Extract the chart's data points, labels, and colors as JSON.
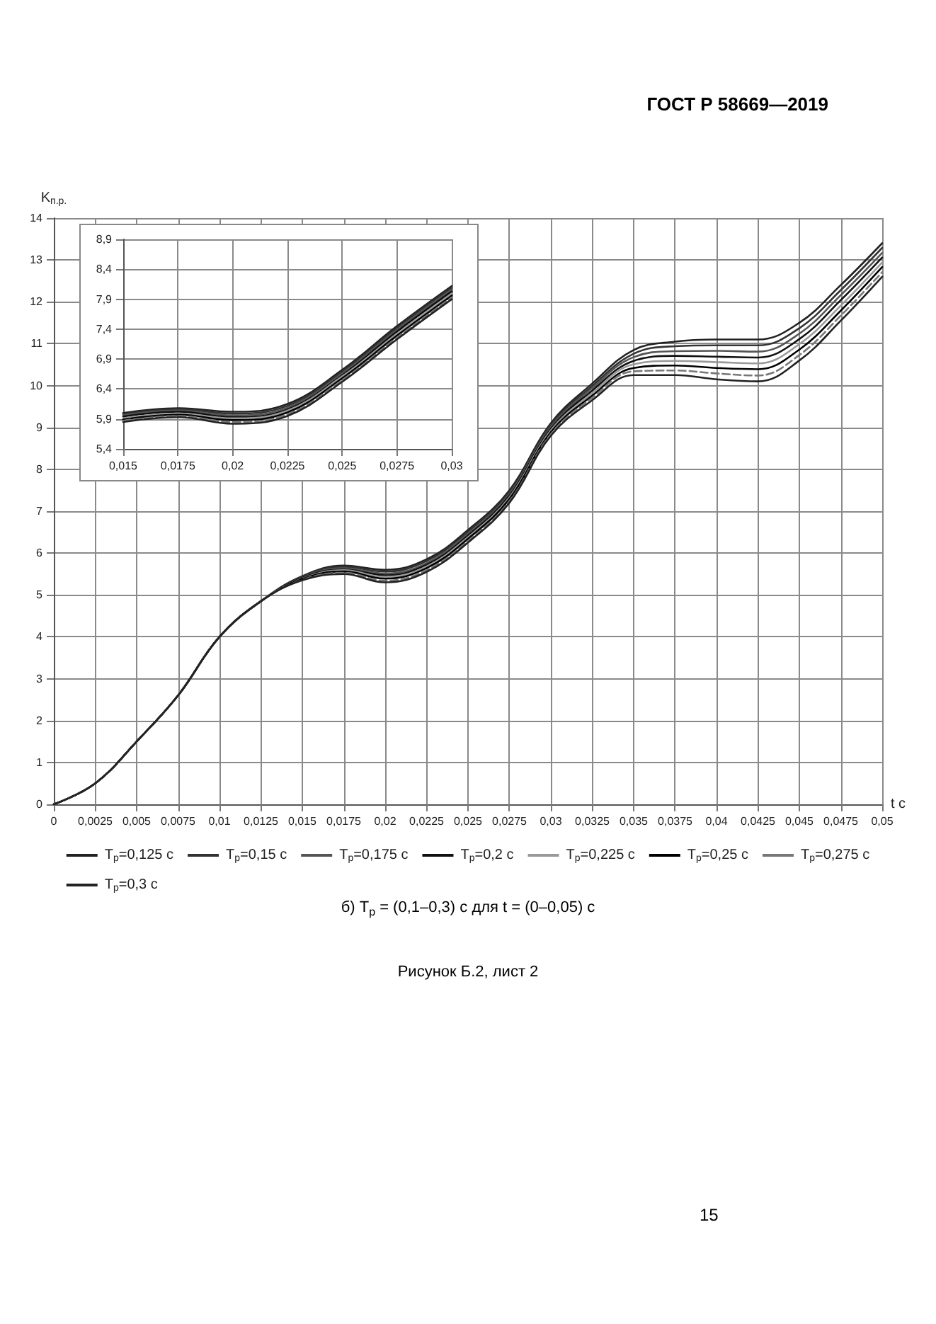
{
  "chart_data": [
    {
      "type": "line",
      "subtitle": "б) T$_{р}$ = (0,1–0,3) с для t = (0–0,05) с",
      "xlabel": "t с",
      "ylabel": "K$_{п.р.}$",
      "annotations": [
        "ГОСТ Р 58669—2019",
        "Рисунок Б.2, лист 2",
        "15"
      ],
      "x": [
        0,
        0.0025,
        0.005,
        0.0075,
        0.01,
        0.0125,
        0.015,
        0.0175,
        0.02,
        0.0225,
        0.025,
        0.0275,
        0.03,
        0.0325,
        0.035,
        0.0375,
        0.04,
        0.0425,
        0.045,
        0.0475,
        0.05
      ],
      "series": [
        {
          "name": "T$_{р}$=0,125 с",
          "color": "#222222",
          "values": [
            0,
            0.5,
            1.5,
            2.6,
            4.0,
            4.85,
            5.45,
            5.7,
            5.6,
            5.85,
            6.55,
            7.5,
            9.1,
            10.05,
            10.85,
            11.05,
            11.1,
            11.1,
            11.5,
            12.4,
            13.4
          ]
        },
        {
          "name": "T$_{р}$=0,15 с",
          "color": "#333333",
          "values": [
            0,
            0.5,
            1.5,
            2.6,
            4.0,
            4.85,
            5.44,
            5.67,
            5.56,
            5.81,
            6.51,
            7.46,
            9.06,
            9.99,
            10.76,
            10.94,
            10.96,
            10.96,
            11.37,
            12.28,
            13.29
          ]
        },
        {
          "name": "T$_{р}$=0,175 с",
          "color": "#555555",
          "values": [
            0,
            0.5,
            1.5,
            2.6,
            4.0,
            4.85,
            5.42,
            5.64,
            5.51,
            5.76,
            6.46,
            7.41,
            9.01,
            9.94,
            10.68,
            10.82,
            10.83,
            10.81,
            11.24,
            12.16,
            13.17
          ]
        },
        {
          "name": "T$_{р}$=0,2 с",
          "color": "#111111",
          "values": [
            0,
            0.5,
            1.5,
            2.6,
            4.0,
            4.85,
            5.41,
            5.61,
            5.47,
            5.72,
            6.42,
            7.37,
            8.97,
            9.88,
            10.59,
            10.71,
            10.69,
            10.67,
            11.11,
            12.04,
            13.06
          ]
        },
        {
          "name": "T$_{р}$=0,225 с",
          "color": "#999999",
          "values": [
            0,
            0.5,
            1.5,
            2.6,
            4.0,
            4.85,
            5.39,
            5.59,
            5.43,
            5.68,
            6.38,
            7.33,
            8.93,
            9.82,
            10.51,
            10.59,
            10.56,
            10.53,
            10.99,
            11.91,
            12.94
          ]
        },
        {
          "name": "T$_{р}$=0,25 с",
          "color": "#000000",
          "values": [
            0,
            0.5,
            1.5,
            2.6,
            4.0,
            4.85,
            5.38,
            5.56,
            5.39,
            5.64,
            6.34,
            7.29,
            8.89,
            9.76,
            10.42,
            10.48,
            10.42,
            10.39,
            10.86,
            11.79,
            12.83
          ]
        },
        {
          "name": "T$_{р}$=0,275 с",
          "color": "#777777",
          "line_style": "dashed",
          "values": [
            0,
            0.5,
            1.5,
            2.6,
            4.0,
            4.85,
            5.36,
            5.53,
            5.34,
            5.59,
            6.29,
            7.24,
            8.84,
            9.71,
            10.34,
            10.36,
            10.29,
            10.24,
            10.73,
            11.67,
            12.71
          ]
        },
        {
          "name": "T$_{р}$=0,3 с",
          "color": "#222222",
          "values": [
            0,
            0.5,
            1.5,
            2.6,
            4.0,
            4.85,
            5.35,
            5.5,
            5.3,
            5.55,
            6.25,
            7.2,
            8.8,
            9.65,
            10.25,
            10.25,
            10.15,
            10.1,
            10.6,
            11.55,
            12.6
          ]
        }
      ],
      "xlim": [
        0,
        0.05
      ],
      "xticks": [
        0,
        {
          "value": 0.0025,
          "label": "0,0025"
        },
        {
          "value": 0.005,
          "label": "0,005"
        },
        {
          "value": 0.0075,
          "label": "0,0075"
        },
        {
          "value": 0.01,
          "label": "0,01"
        },
        {
          "value": 0.0125,
          "label": "0,0125"
        },
        {
          "value": 0.015,
          "label": "0,015"
        },
        {
          "value": 0.0175,
          "label": "0,0175"
        },
        {
          "value": 0.02,
          "label": "0,02"
        },
        {
          "value": 0.0225,
          "label": "0,0225"
        },
        {
          "value": 0.025,
          "label": "0,025"
        },
        {
          "value": 0.0275,
          "label": "0,0275"
        },
        {
          "value": 0.03,
          "label": "0,03"
        },
        {
          "value": 0.0325,
          "label": "0,0325"
        },
        {
          "value": 0.035,
          "label": "0,035"
        },
        {
          "value": 0.0375,
          "label": "0,0375"
        },
        {
          "value": 0.04,
          "label": "0,04"
        },
        {
          "value": 0.0425,
          "label": "0,0425"
        },
        {
          "value": 0.045,
          "label": "0,045"
        },
        {
          "value": 0.0475,
          "label": "0,0475"
        },
        {
          "value": 0.05,
          "label": "0,05"
        }
      ],
      "ylim": [
        0,
        14
      ],
      "yticks": [
        0,
        1,
        2,
        3,
        4,
        5,
        6,
        7,
        8,
        9,
        10,
        11,
        12,
        13,
        14
      ],
      "grid": true,
      "legend": "bottom"
    },
    {
      "type": "line",
      "x": [
        0.015,
        0.0175,
        0.02,
        0.0225,
        0.025,
        0.0275,
        0.03
      ],
      "series": [
        {
          "color": "#222222",
          "values": [
            6.0,
            6.08,
            6.02,
            6.15,
            6.72,
            7.45,
            8.12
          ]
        },
        {
          "color": "#333333",
          "values": [
            5.98,
            6.06,
            5.99,
            6.12,
            6.69,
            7.42,
            8.09
          ]
        },
        {
          "color": "#555555",
          "values": [
            5.96,
            6.04,
            5.96,
            6.09,
            6.66,
            7.39,
            8.06
          ]
        },
        {
          "color": "#111111",
          "values": [
            5.94,
            6.02,
            5.93,
            6.06,
            6.63,
            7.36,
            8.03
          ]
        },
        {
          "color": "#999999",
          "values": [
            5.91,
            5.99,
            5.91,
            6.04,
            6.61,
            7.32,
            7.99
          ]
        },
        {
          "color": "#000000",
          "values": [
            5.89,
            5.97,
            5.88,
            6.01,
            6.58,
            7.29,
            7.96
          ]
        },
        {
          "color": "#777777",
          "line_style": "dashed",
          "values": [
            5.87,
            5.95,
            5.85,
            5.98,
            6.55,
            7.26,
            7.93
          ]
        },
        {
          "color": "#222222",
          "values": [
            5.85,
            5.93,
            5.82,
            5.95,
            6.52,
            7.23,
            7.9
          ]
        }
      ],
      "xlim": [
        0.015,
        0.03
      ],
      "xticks": [
        {
          "value": 0.015,
          "label": "0,015"
        },
        {
          "value": 0.0175,
          "label": "0,0175"
        },
        {
          "value": 0.02,
          "label": "0,02"
        },
        {
          "value": 0.0225,
          "label": "0,0225"
        },
        {
          "value": 0.025,
          "label": "0,025"
        },
        {
          "value": 0.0275,
          "label": "0,0275"
        },
        {
          "value": 0.03,
          "label": "0,03"
        }
      ],
      "ylim": [
        5.4,
        8.9
      ],
      "yticks": [
        {
          "value": 5.4,
          "label": "5,4"
        },
        {
          "value": 5.9,
          "label": "5,9"
        },
        {
          "value": 6.4,
          "label": "6,4"
        },
        {
          "value": 6.9,
          "label": "6,9"
        },
        {
          "value": 7.4,
          "label": "7,4"
        },
        {
          "value": 7.9,
          "label": "7,9"
        },
        {
          "value": 8.4,
          "label": "8,4"
        },
        {
          "value": 8.9,
          "label": "8,9"
        }
      ],
      "grid": true
    }
  ]
}
